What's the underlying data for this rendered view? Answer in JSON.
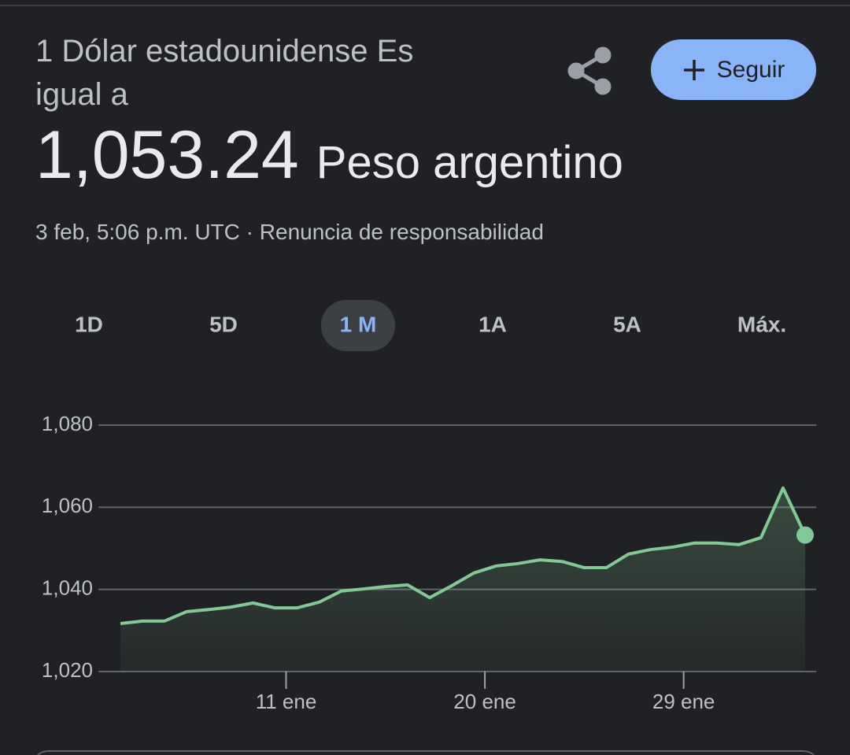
{
  "header": {
    "title": "1 Dólar estadounidense Es igual a",
    "value": "1,053.24",
    "currency": "Peso argentino",
    "timestamp": "3 feb, 5:06 p.m. UTC",
    "separator": "·",
    "disclaimer": "Renuncia de responsabilidad"
  },
  "follow_button": "Seguir",
  "ranges": [
    "1D",
    "5D",
    "1 M",
    "1A",
    "5A",
    "Máx."
  ],
  "selected_range": 2,
  "chart_data": {
    "type": "line",
    "x": [
      3.5,
      4.5,
      5.5,
      6.5,
      7.5,
      8.5,
      9.5,
      10.5,
      11.5,
      12.5,
      13.5,
      14.5,
      15.5,
      16.5,
      17.5,
      18.5,
      19.5,
      20.5,
      21.5,
      22.5,
      23.5,
      24.5,
      25.5,
      26.5,
      27.5,
      28.5,
      29.5,
      30.5,
      31.5,
      32.5,
      33.5,
      34.5
    ],
    "series": [
      {
        "name": "USD/ARS",
        "color": "#81c995",
        "values": [
          1031.7,
          1032.3,
          1032.3,
          1034.6,
          1035.1,
          1035.7,
          1036.7,
          1035.5,
          1035.5,
          1036.9,
          1039.6,
          1040.1,
          1040.7,
          1041.1,
          1038.0,
          1040.9,
          1044.0,
          1045.7,
          1046.3,
          1047.2,
          1046.8,
          1045.3,
          1045.3,
          1048.6,
          1049.7,
          1050.3,
          1051.3,
          1051.3,
          1050.9,
          1052.6,
          1064.7,
          1053.24
        ]
      }
    ],
    "xlim": [
      2.5,
      35
    ],
    "xticks": [
      {
        "value": 11,
        "label": "11 ene"
      },
      {
        "value": 20,
        "label": "20 ene"
      },
      {
        "value": 29,
        "label": "29 ene"
      }
    ],
    "ylim": [
      1020,
      1080
    ],
    "yticks": [
      {
        "value": 1020,
        "label": "1,020"
      },
      {
        "value": 1040,
        "label": "1,040"
      },
      {
        "value": 1060,
        "label": "1,060"
      },
      {
        "value": 1080,
        "label": "1,080"
      }
    ],
    "grid": true
  }
}
